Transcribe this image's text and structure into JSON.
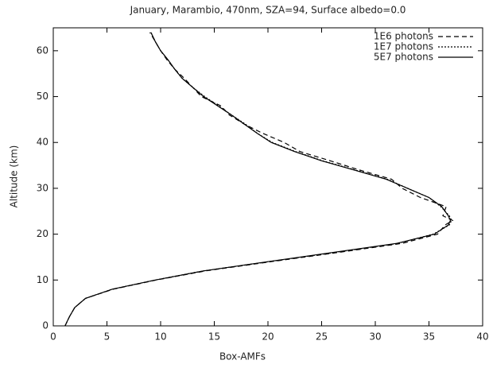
{
  "chart_data": {
    "type": "line",
    "title": "January, Marambio, 470nm, SZA=94, Surface albedo=0.0",
    "x_label": "Box-AMFs",
    "y_label": "Altitude (km)",
    "y": [
      0,
      2,
      4,
      6,
      8,
      10,
      12,
      14,
      16,
      18,
      20,
      22,
      23,
      24,
      26,
      28,
      30,
      32,
      34,
      36,
      38,
      40,
      42,
      44,
      46,
      48,
      50,
      52,
      54,
      56,
      58,
      60,
      62,
      64
    ],
    "series": [
      {
        "name": "1E6 photons",
        "color": "#000000",
        "dash": "6,4",
        "values": [
          1.1,
          1.5,
          2.0,
          3.0,
          5.6,
          9.6,
          14.2,
          20.3,
          26.5,
          32.5,
          35.8,
          36.5,
          37.2,
          36.3,
          36.6,
          34.2,
          32.5,
          31.5,
          28.5,
          25.8,
          23.0,
          21.5,
          19.5,
          17.8,
          16.4,
          15.6,
          13.8,
          13.0,
          12.2,
          11.3,
          10.6,
          10.0,
          9.5,
          9.0
        ]
      },
      {
        "name": "1E7 photons",
        "color": "#000000",
        "dash": "2,2",
        "values": [
          1.1,
          1.5,
          2.0,
          3.0,
          5.5,
          9.5,
          14.0,
          20.1,
          26.2,
          32.1,
          35.4,
          36.9,
          37.1,
          36.9,
          36.1,
          35.0,
          33.0,
          31.1,
          28.1,
          25.1,
          22.6,
          20.4,
          19.0,
          17.9,
          16.6,
          15.4,
          14.1,
          13.0,
          12.0,
          11.3,
          10.7,
          10.0,
          9.5,
          9.1
        ]
      },
      {
        "name": "5E7 photons",
        "color": "#000000",
        "dash": "",
        "values": [
          1.1,
          1.5,
          2.0,
          3.0,
          5.5,
          9.5,
          14.0,
          20.0,
          26.0,
          32.0,
          35.5,
          36.8,
          37.0,
          36.8,
          36.2,
          35.0,
          33.0,
          31.0,
          28.0,
          25.0,
          22.5,
          20.3,
          19.0,
          17.8,
          16.6,
          15.3,
          14.0,
          13.0,
          12.0,
          11.3,
          10.7,
          10.0,
          9.5,
          9.1
        ]
      }
    ],
    "xlim": [
      0,
      40
    ],
    "xticks": [
      0,
      5,
      10,
      15,
      20,
      25,
      30,
      35,
      40
    ],
    "ylim": [
      0,
      65
    ],
    "yticks": [
      0,
      10,
      20,
      30,
      40,
      50,
      60
    ],
    "legend": "upper right"
  }
}
